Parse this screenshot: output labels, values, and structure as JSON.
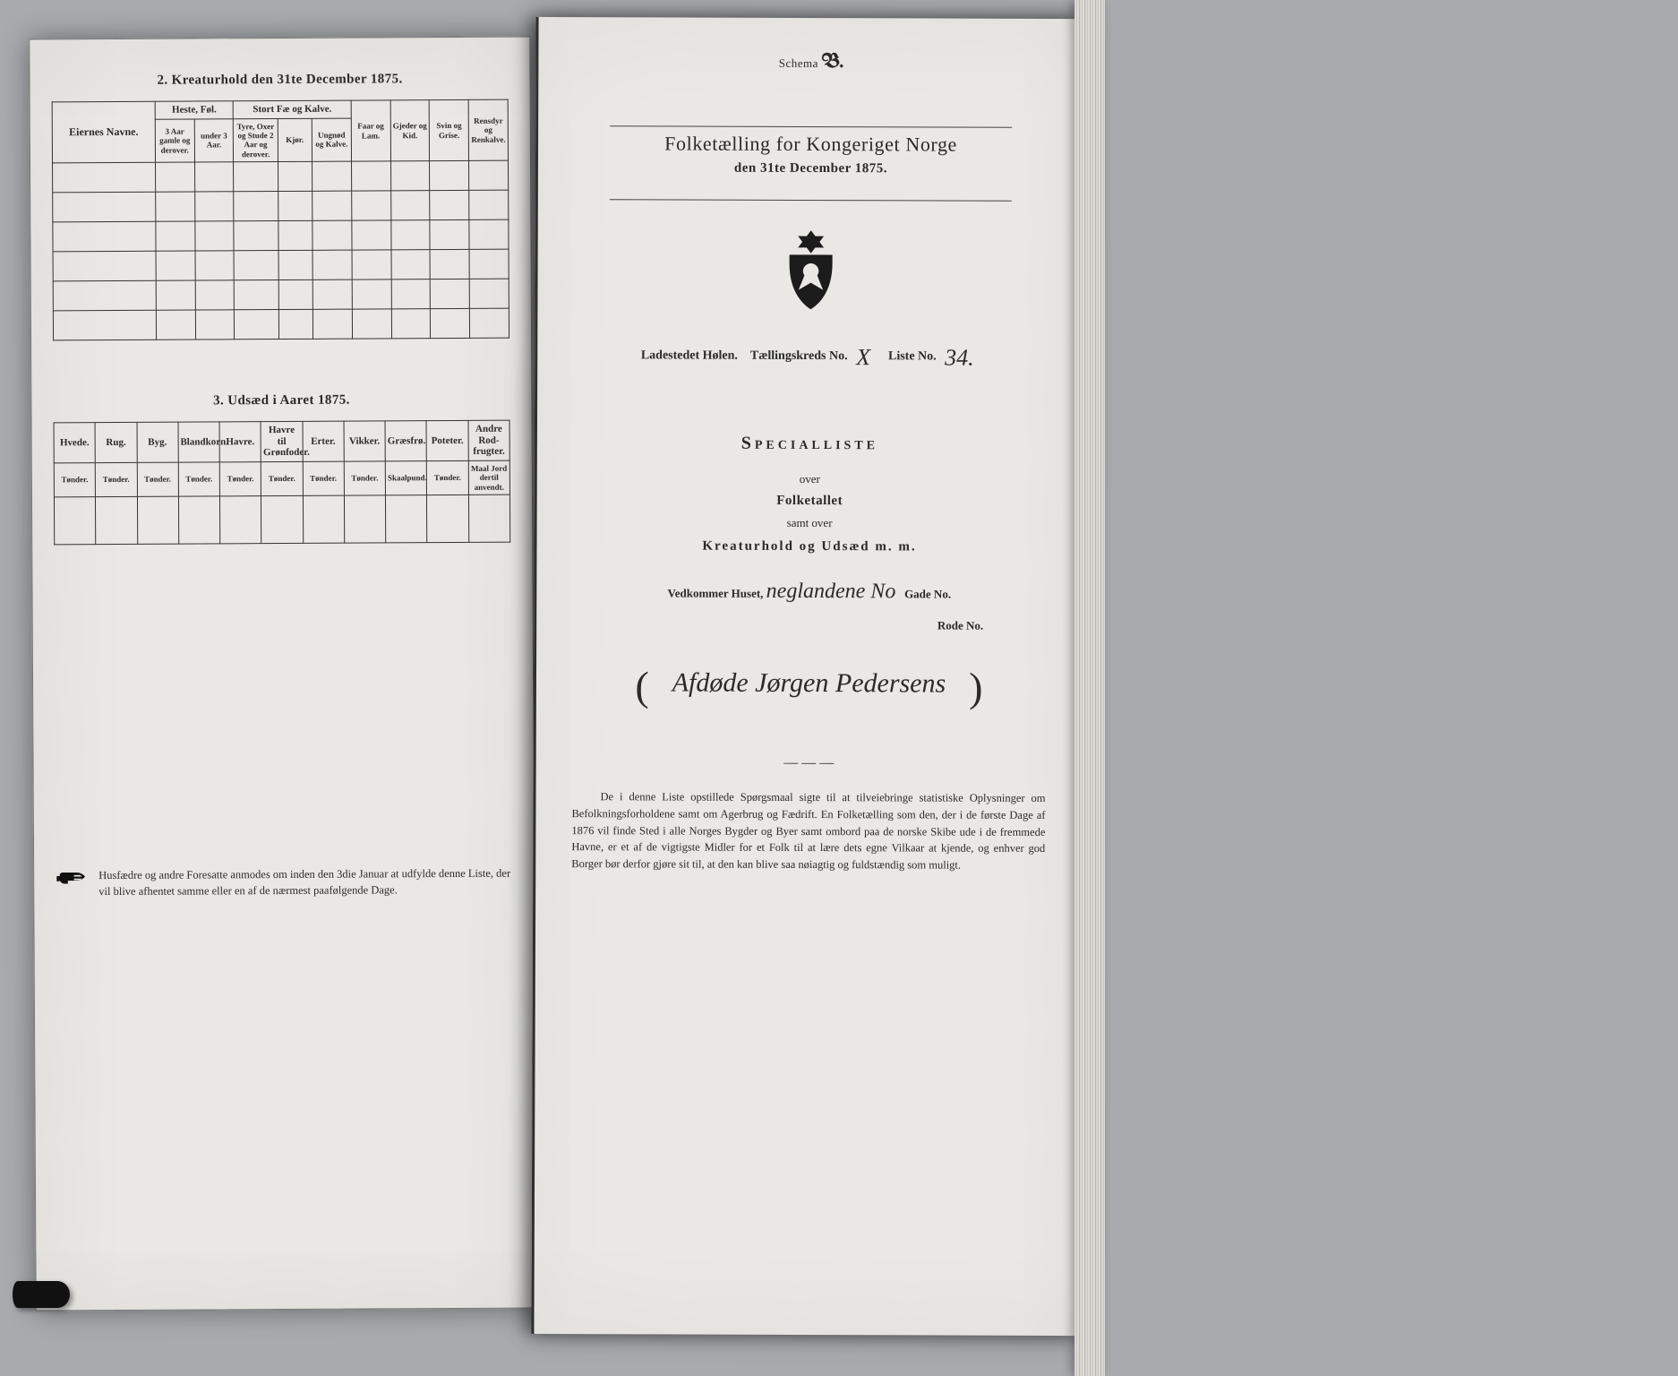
{
  "left": {
    "section2": {
      "title": "2.  Kreaturhold den 31te December 1875.",
      "col_owner": "Eiernes Navne.",
      "group_heste": "Heste, Føl.",
      "heste_a": "3 Aar gamle og derover.",
      "heste_b": "under 3 Aar.",
      "group_stort": "Stort Fæ og Kalve.",
      "stort_a": "Tyre, Oxer og Stude 2 Aar og derover.",
      "stort_b": "Kjør.",
      "stort_c": "Ungnød og Kalve.",
      "col_faar": "Faar og Lam.",
      "col_gjed": "Gjeder og Kid.",
      "col_svin": "Svin og Grise.",
      "col_rens": "Rensdyr og Renkalve."
    },
    "section3": {
      "title": "3.  Udsæd i Aaret 1875.",
      "cols": [
        "Hvede.",
        "Rug.",
        "Byg.",
        "Blandkorn.",
        "Havre.",
        "Havre til Grønfoder.",
        "Erter.",
        "Vikker.",
        "Græsfrø.",
        "Poteter.",
        "Andre Rod-frugter."
      ],
      "units": [
        "Tønder.",
        "Tønder.",
        "Tønder.",
        "Tønder.",
        "Tønder.",
        "Tønder.",
        "Tønder.",
        "Tønder.",
        "Skaalpund.",
        "Tønder.",
        "Maal Jord dertil anvendt."
      ]
    },
    "footnote": "Husfædre og andre Foresatte anmodes om inden den 3die Januar at udfylde denne Liste, der vil blive afhentet samme eller en af de nærmest paafølgende Dage."
  },
  "right": {
    "schema_label": "Schema",
    "schema_num": "B.",
    "title": "Folketælling for Kongeriget Norge",
    "date": "den 31te December 1875.",
    "place_label": "Ladestedet Hølen.",
    "kreds_label": "Tællingskreds No.",
    "kreds_value": "X",
    "liste_label": "Liste No.",
    "liste_value": "34.",
    "specialliste": "Specialliste",
    "over": "over",
    "folketallet": "Folketallet",
    "samt_over": "samt over",
    "kreatur_line": "Kreaturhold og Udsæd m. m.",
    "vedkommer_label": "Vedkommer Huset,",
    "vedkommer_value": "neglandene No",
    "gade_label": "Gade No.",
    "rode_label": "Rode No.",
    "owner": "Afdøde Jørgen Pedersens",
    "bottom_para": "De i denne Liste opstillede Spørgsmaal sigte til at tilveiebringe statistiske Oplysninger om Befolkningsforholdene samt om Agerbrug og Fædrift. En Folketælling som den, der i de første Dage af 1876 vil finde Sted i alle Norges Bygder og Byer samt ombord paa de norske Skibe ude i de fremmede Havne, er et af de vigtigste Midler for et Folk til at lære dets egne Vilkaar at kjende, og enhver god Borger bør derfor gjøre sit til, at den kan blive saa nøiagtig og fuldstændig som muligt."
  }
}
